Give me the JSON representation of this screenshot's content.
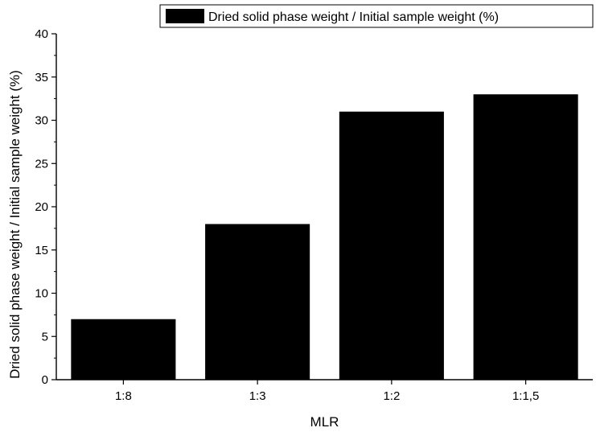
{
  "chart_data": {
    "type": "bar",
    "categories": [
      "1:8",
      "1:3",
      "1:2",
      "1:1,5"
    ],
    "series": [
      {
        "name": "Dried solid phase weight / Initial sample weight (%)",
        "values": [
          7,
          18,
          31,
          33
        ]
      }
    ],
    "xlabel": "MLR",
    "ylabel": "Dried solid phase weight / Initial sample weight (%)",
    "ylim": [
      0,
      40
    ],
    "yticks": [
      "0",
      "5",
      "10",
      "15",
      "20",
      "25",
      "30",
      "35",
      "40"
    ],
    "grid": false,
    "legend_position": "top-right",
    "colors": {
      "bar": "#000000",
      "axis": "#000000",
      "background": "#ffffff"
    }
  }
}
